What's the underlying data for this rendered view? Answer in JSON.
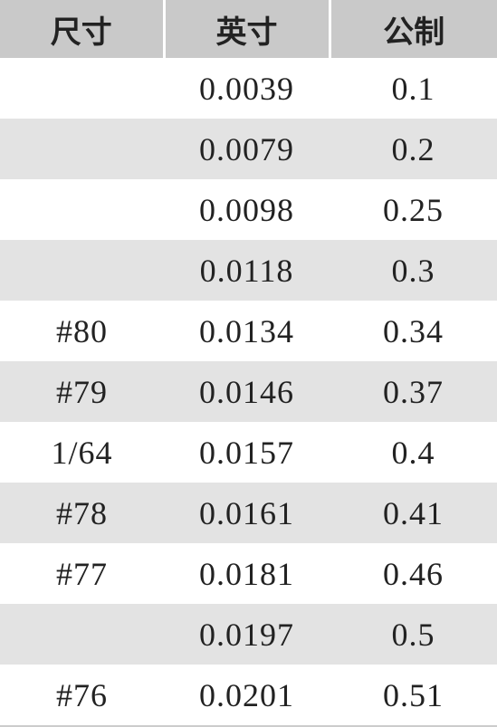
{
  "table": {
    "header": [
      "尺寸",
      "英寸",
      "公制"
    ],
    "rows": [
      [
        null,
        "0.0039",
        "0.1"
      ],
      [
        null,
        "0.0079",
        "0.2"
      ],
      [
        null,
        "0.0098",
        "0.25"
      ],
      [
        null,
        "0.0118",
        "0.3"
      ],
      [
        "#80",
        "0.0134",
        "0.34"
      ],
      [
        "#79",
        "0.0146",
        "0.37"
      ],
      [
        "1/64",
        "0.0157",
        "0.4"
      ],
      [
        "#78",
        "0.0161",
        "0.41"
      ],
      [
        "#77",
        "0.0181",
        "0.46"
      ],
      [
        null,
        "0.0197",
        "0.5"
      ],
      [
        "#76",
        "0.0201",
        "0.51"
      ]
    ]
  }
}
